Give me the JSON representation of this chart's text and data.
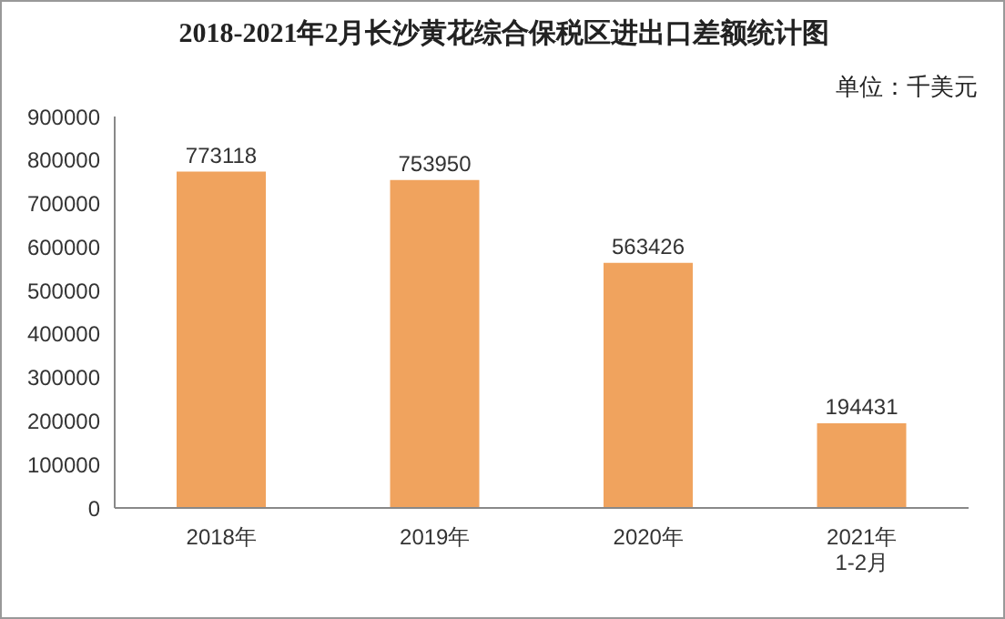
{
  "chart_data": {
    "type": "bar",
    "title": "2018-2021年2月长沙黄花综合保税区进出口差额统计图",
    "annotations": [
      "单位：千美元"
    ],
    "categories": [
      "2018年",
      "2019年",
      "2020年",
      "2021年\n1-2月"
    ],
    "values": [
      773118,
      753950,
      563426,
      194431
    ],
    "color": "#f0a35e",
    "ylim": [
      0,
      900000
    ],
    "yticks": [
      0,
      100000,
      200000,
      300000,
      400000,
      500000,
      600000,
      700000,
      800000,
      900000
    ],
    "grid": false,
    "data_labels": true
  }
}
